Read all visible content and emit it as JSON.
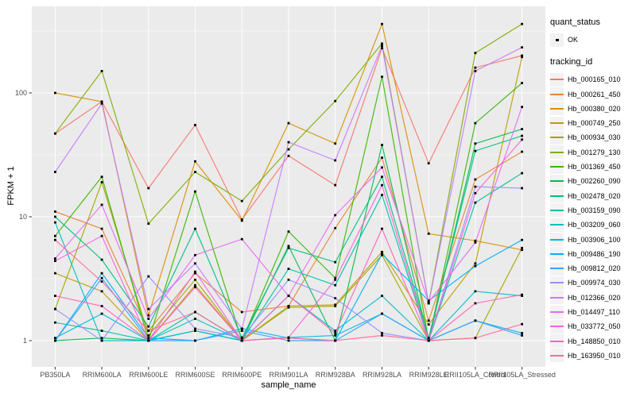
{
  "figure": {
    "background": "#FFFFFF",
    "panel_background": "#EBEBEB",
    "grid_color": "#FFFFFF",
    "axis_text_color": "#4D4D4D",
    "tick_color": "#333333",
    "point_color": "#000000"
  },
  "legend": {
    "quant_title": "quant_status",
    "quant_items": [
      {
        "label": "OK",
        "marker": "black-square-point"
      }
    ],
    "tracking_title": "tracking_id"
  },
  "chart_data": {
    "type": "line",
    "title": "",
    "xlabel": "sample_name",
    "ylabel": "FPKM + 1",
    "y_scale": "log10",
    "y_ticks": [
      1,
      10,
      100
    ],
    "y_minor_ticks": [
      3.162,
      31.62,
      316.2
    ],
    "ylim": [
      0.62,
      500
    ],
    "grid": true,
    "legend_position": "right",
    "point_marker": "small-black-square",
    "categories": [
      "PB350LA",
      "RRIM600LA",
      "RRIM600LE",
      "RRIM600SE",
      "RRIM600PE",
      "RRIM901LA",
      "RRIM928BA",
      "RRIM928LA",
      "RRIM928LE",
      "RRII105LA_Control",
      "RRII105LA_Stressed"
    ],
    "series": [
      {
        "name": "Hb_000165_010",
        "color": "#F8766D",
        "quant_status": "OK",
        "values": [
          47,
          85,
          17,
          55,
          9.5,
          31,
          18,
          230,
          27,
          160,
          200
        ]
      },
      {
        "name": "Hb_000261_450",
        "color": "#EA8331",
        "quant_status": "OK",
        "values": [
          11,
          8,
          1.2,
          3.5,
          1.7,
          1.9,
          8.1,
          30,
          1.45,
          20,
          33.5
        ]
      },
      {
        "name": "Hb_000380_020",
        "color": "#D89000",
        "quant_status": "OK",
        "values": [
          100,
          85,
          1.6,
          28,
          9.3,
          57,
          39,
          360,
          7.3,
          6.4,
          5.4
        ]
      },
      {
        "name": "Hb_000749_250",
        "color": "#C09B00",
        "quant_status": "OK",
        "values": [
          3.5,
          2.5,
          1.0,
          2.8,
          1.0,
          1.9,
          1.95,
          5.2,
          1.35,
          4.2,
          195
        ]
      },
      {
        "name": "Hb_000934_030",
        "color": "#A3A500",
        "quant_status": "OK",
        "values": [
          1.8,
          19,
          1.1,
          3.1,
          1.0,
          1.85,
          1.9,
          4.9,
          1.0,
          1.05,
          5.6
        ]
      },
      {
        "name": "Hb_001279_130",
        "color": "#7CAE00",
        "quant_status": "OK",
        "values": [
          47,
          150,
          8.8,
          23,
          13.4,
          35,
          86,
          250,
          2.0,
          210,
          360
        ]
      },
      {
        "name": "Hb_001369_450",
        "color": "#39B600",
        "quant_status": "OK",
        "values": [
          7,
          21,
          1.0,
          16,
          1.0,
          7.6,
          3.2,
          135,
          1.0,
          57,
          120
        ]
      },
      {
        "name": "Hb_002260_090",
        "color": "#00BB4E",
        "quant_status": "OK",
        "values": [
          1.0,
          1.05,
          1.0,
          1.2,
          1.0,
          5.8,
          1.0,
          38,
          1.0,
          39,
          51
        ]
      },
      {
        "name": "Hb_002478_020",
        "color": "#00BF7D",
        "quant_status": "OK",
        "values": [
          10,
          4.5,
          1.3,
          8,
          1.05,
          5.6,
          4.3,
          21,
          1.05,
          34,
          45
        ]
      },
      {
        "name": "Hb_003159_090",
        "color": "#00C1A3",
        "quant_status": "OK",
        "values": [
          1.4,
          1.2,
          1.0,
          1.7,
          1.0,
          3.8,
          2.8,
          15,
          1.0,
          13,
          22.5
        ]
      },
      {
        "name": "Hb_003209_060",
        "color": "#00BFC4",
        "quant_status": "OK",
        "values": [
          9,
          1.0,
          1.0,
          1.5,
          1.0,
          2.3,
          1.2,
          2.3,
          1.0,
          2.5,
          2.3
        ]
      },
      {
        "name": "Hb_003906_100",
        "color": "#00BAE0",
        "quant_status": "OK",
        "values": [
          1.05,
          1.65,
          1.0,
          1.2,
          1.0,
          1.06,
          1.1,
          1.65,
          1.0,
          1.45,
          1.15
        ]
      },
      {
        "name": "Hb_009486_190",
        "color": "#00B0F6",
        "quant_status": "OK",
        "values": [
          1.0,
          3.5,
          1.05,
          1.0,
          1.25,
          1.05,
          1.0,
          5.0,
          2.1,
          4.0,
          6.5
        ]
      },
      {
        "name": "Hb_009812_020",
        "color": "#35A2FF",
        "quant_status": "OK",
        "values": [
          1.0,
          3.2,
          1.0,
          1.0,
          1.2,
          1.0,
          1.0,
          1.65,
          1.0,
          1.45,
          1.1
        ]
      },
      {
        "name": "Hb_009974_030",
        "color": "#9590FF",
        "quant_status": "OK",
        "values": [
          1.8,
          1.0,
          3.3,
          1.25,
          1.06,
          3.1,
          2.2,
          1.15,
          1.0,
          17.5,
          17
        ]
      },
      {
        "name": "Hb_012366_020",
        "color": "#C77CFF",
        "quant_status": "OK",
        "values": [
          23,
          82,
          1.8,
          4.2,
          1.25,
          40,
          28.5,
          240,
          2.0,
          150,
          233
        ]
      },
      {
        "name": "Hb_014497_110",
        "color": "#E76BF3",
        "quant_status": "OK",
        "values": [
          4.6,
          12.5,
          1.5,
          4.9,
          6.6,
          2.3,
          10.3,
          25,
          2.05,
          6.2,
          77
        ]
      },
      {
        "name": "Hb_033772_050",
        "color": "#FA62DB",
        "quant_status": "OK",
        "values": [
          4.4,
          7,
          1.0,
          3.6,
          1.0,
          1.06,
          3.1,
          18,
          1.0,
          15.5,
          42
        ]
      },
      {
        "name": "Hb_148850_010",
        "color": "#FF62BC",
        "quant_status": "OK",
        "values": [
          2.3,
          1.9,
          1.0,
          2.7,
          1.0,
          2.3,
          1.15,
          8,
          1.0,
          2.0,
          2.35
        ]
      },
      {
        "name": "Hb_163950_010",
        "color": "#FF6A98",
        "quant_status": "OK",
        "values": [
          6.5,
          3.0,
          1.2,
          1.7,
          1.0,
          1.05,
          1.0,
          1.1,
          1.0,
          1.05,
          1.36
        ]
      }
    ]
  }
}
